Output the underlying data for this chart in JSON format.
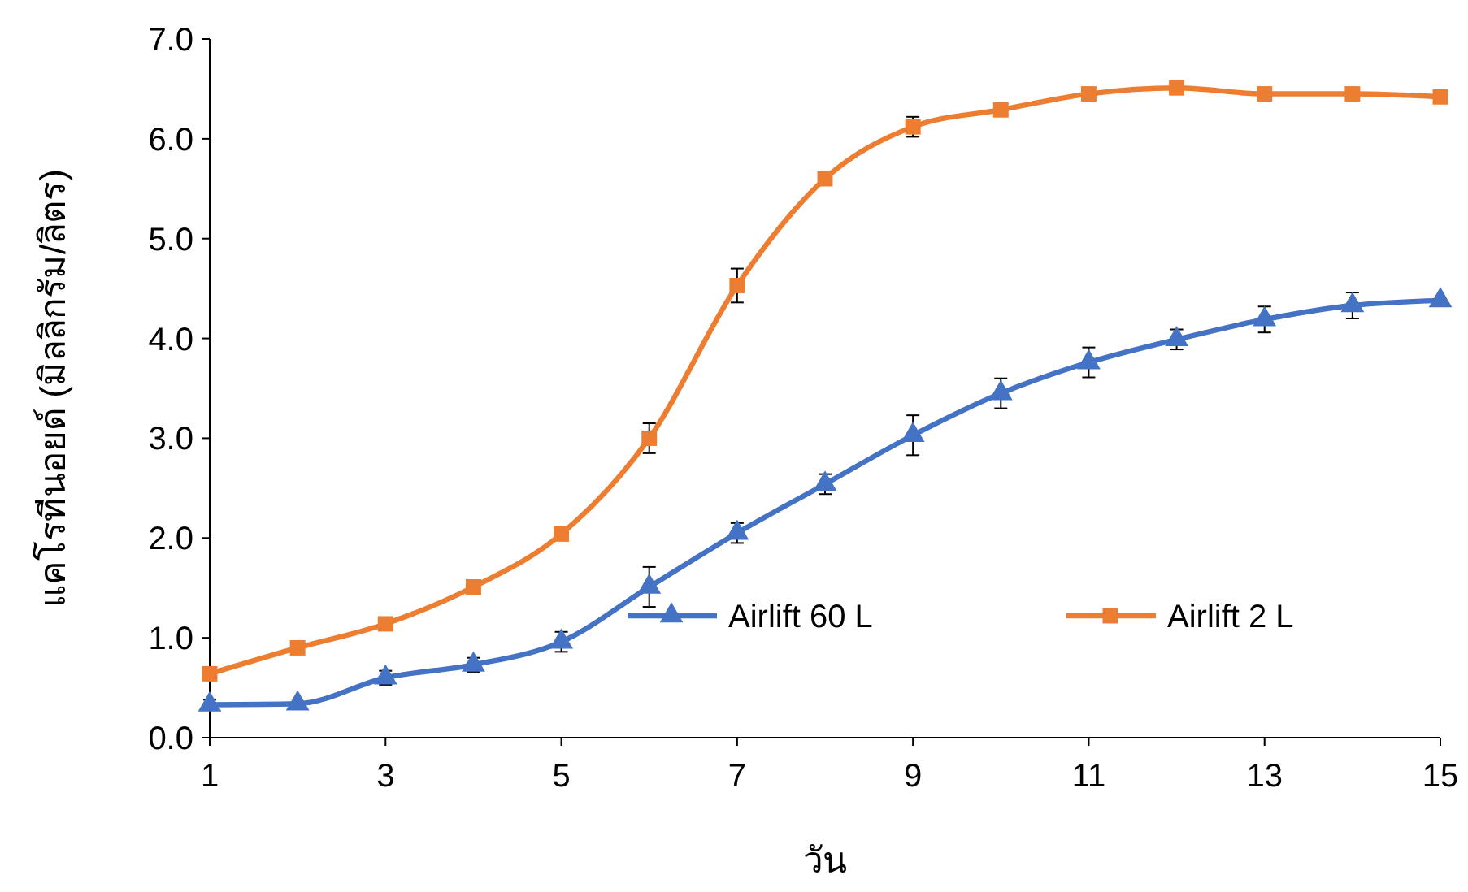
{
  "chart_data": {
    "type": "line",
    "xlabel": "วัน",
    "ylabel": "แคโรทีนอยด์ (มิลลิกรัม/ลิตร)",
    "x": [
      1,
      2,
      3,
      4,
      5,
      6,
      7,
      8,
      9,
      10,
      11,
      12,
      13,
      14,
      15
    ],
    "xlim": [
      1,
      15
    ],
    "xticks": [
      1,
      3,
      5,
      7,
      9,
      11,
      13,
      15
    ],
    "ylim": [
      0,
      7
    ],
    "yticks": [
      {
        "value": 0,
        "label": "0.0"
      },
      {
        "value": 1,
        "label": "1.0"
      },
      {
        "value": 2,
        "label": "2.0"
      },
      {
        "value": 3,
        "label": "3.0"
      },
      {
        "value": 4,
        "label": "4.0"
      },
      {
        "value": 5,
        "label": "5.0"
      },
      {
        "value": 6,
        "label": "6.0"
      },
      {
        "value": 7,
        "label": "7.0"
      }
    ],
    "grid": false,
    "legend": "bottom right",
    "line_style": "solid",
    "series": [
      {
        "name": "Airlift 60 L",
        "color": "#4472c4",
        "marker": "triangle",
        "values": [
          0.33,
          0.34,
          0.6,
          0.73,
          0.96,
          1.51,
          2.05,
          2.54,
          3.03,
          3.45,
          3.76,
          3.99,
          4.19,
          4.33,
          4.38
        ],
        "errors": [
          0.05,
          null,
          0.07,
          0.07,
          0.1,
          0.2,
          0.1,
          0.1,
          0.2,
          0.15,
          0.15,
          0.1,
          0.13,
          0.13,
          null
        ]
      },
      {
        "name": "Airlift 2 L",
        "color": "#ed7d31",
        "marker": "square",
        "values": [
          0.64,
          0.9,
          1.14,
          1.51,
          2.04,
          3.0,
          4.53,
          5.6,
          6.12,
          6.29,
          6.45,
          6.51,
          6.45,
          6.45,
          6.42
        ],
        "errors": [
          null,
          null,
          null,
          null,
          null,
          0.15,
          0.17,
          null,
          0.1,
          null,
          null,
          null,
          null,
          null,
          null
        ]
      }
    ]
  }
}
